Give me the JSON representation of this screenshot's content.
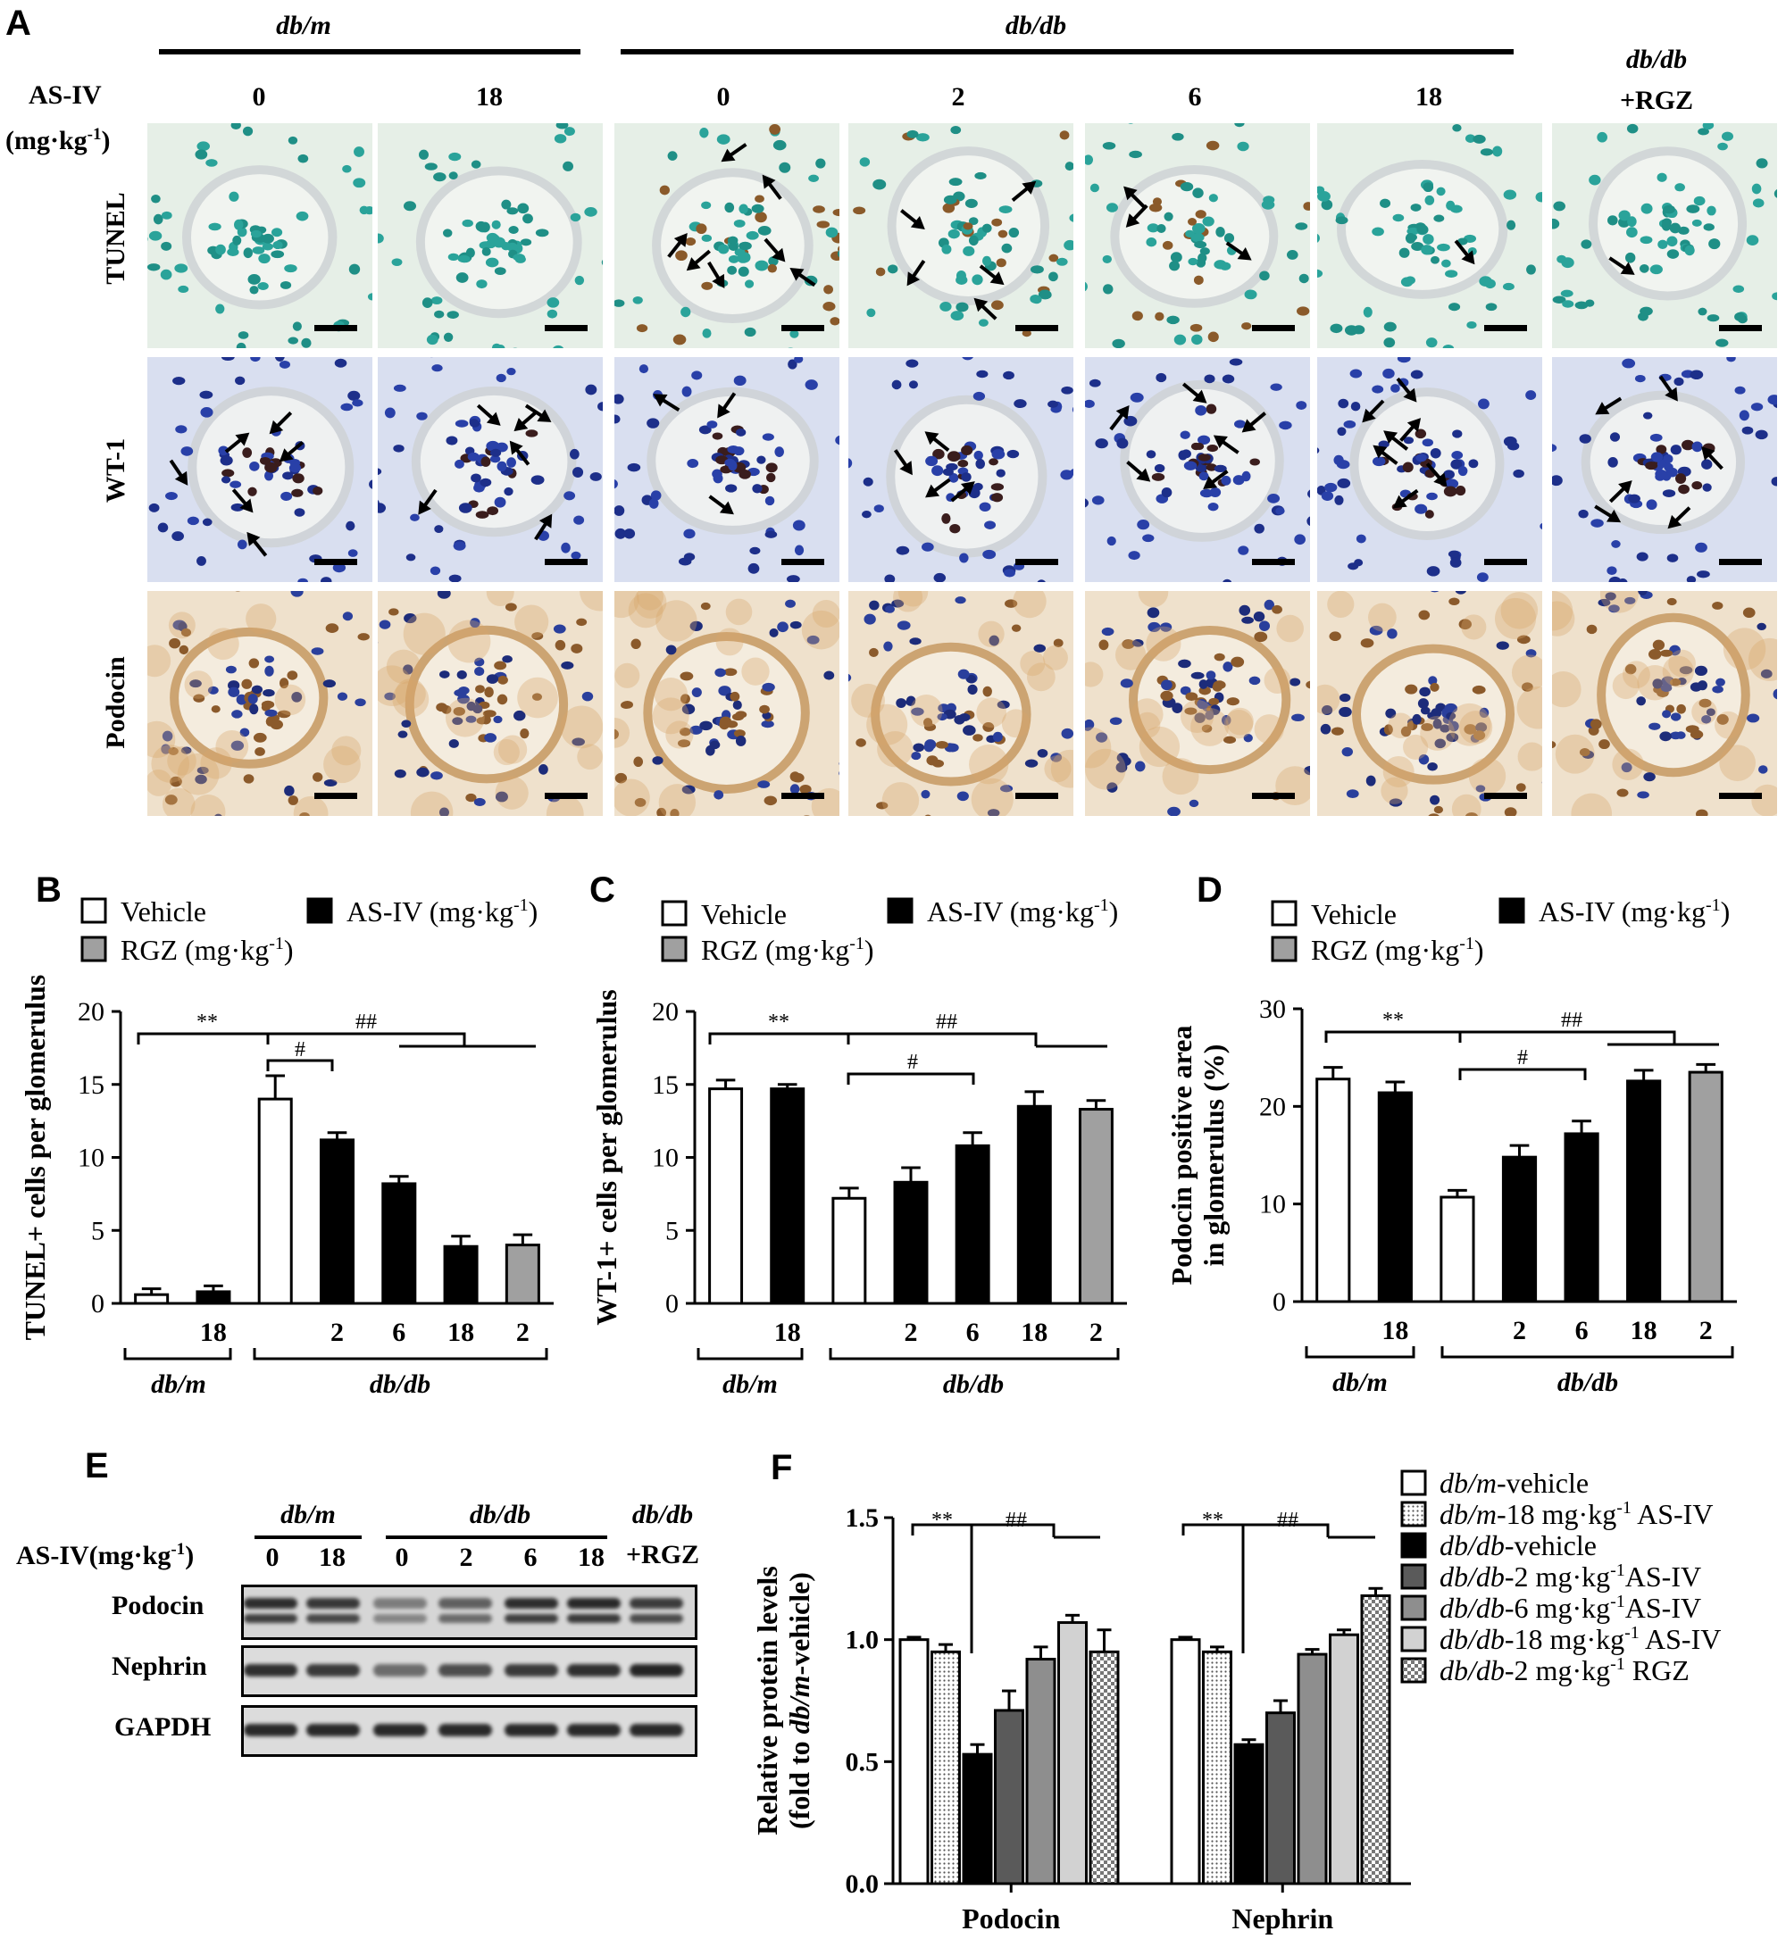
{
  "panelA": {
    "letter": "A",
    "group_dbm": "db/m",
    "group_dbdb": "db/db",
    "group_rgz_line1": "db/db",
    "group_rgz_line2": "+RGZ",
    "asiv_label": "AS-IV",
    "unit_label": "(mg·kg",
    "unit_sup": "-1",
    "unit_close": ")",
    "doses": [
      "0",
      "18",
      "0",
      "2",
      "6",
      "18"
    ],
    "rows": [
      "TUNEL",
      "WT-1",
      "Podocin"
    ],
    "stain_colors": {
      "tunel": "#e6efe7",
      "wt1": "#d9dff0",
      "podocin": "#efe1cc"
    }
  },
  "panelB": {
    "letter": "B",
    "legend": [
      "Vehicle",
      "AS-IV (mg·kg",
      "RGZ (mg·kg"
    ],
    "legend_sup": "-1",
    "legend_close": ")",
    "sig_left": "**",
    "sig_right": "##",
    "sig_inner": "#",
    "group1": "db/m",
    "group2": "db/db"
  },
  "panelC": {
    "letter": "C",
    "legend": [
      "Vehicle",
      "AS-IV (mg·kg",
      "RGZ (mg·kg"
    ],
    "legend_sup": "-1",
    "legend_close": ")",
    "sig_left": "**",
    "sig_right": "##",
    "sig_inner": "#",
    "group1": "db/m",
    "group2": "db/db"
  },
  "panelD": {
    "letter": "D",
    "legend": [
      "Vehicle",
      "AS-IV (mg·kg",
      "RGZ (mg·kg"
    ],
    "legend_sup": "-1",
    "legend_close": ")",
    "sig_left": "**",
    "sig_right": "##",
    "sig_inner": "#",
    "group1": "db/m",
    "group2": "db/db"
  },
  "panelE": {
    "letter": "E",
    "group_dbm": "db/m",
    "group_dbdb": "db/db",
    "group_rgz_line1": "db/db",
    "group_rgz_line2": "+RGZ",
    "asiv_label": "AS-IV(mg·kg",
    "asiv_sup": "-1",
    "asiv_close": ")",
    "doses": [
      "0",
      "18",
      "0",
      "2",
      "6",
      "18"
    ],
    "blots": [
      "Podocin",
      "Nephrin",
      "GAPDH"
    ]
  },
  "panelF": {
    "letter": "F",
    "sig_left": "**",
    "sig_right": "##",
    "legend": [
      {
        "pre": "db/m",
        "post": "-vehicle",
        "sup": "",
        "tail": ""
      },
      {
        "pre": "db/m",
        "post": "-18 mg·kg",
        "sup": "-1",
        "tail": " AS-IV"
      },
      {
        "pre": "db/db",
        "post": "-vehicle",
        "sup": "",
        "tail": ""
      },
      {
        "pre": "db/db",
        "post": "-2 mg·kg",
        "sup": "-1",
        "tail": "AS-IV"
      },
      {
        "pre": "db/db",
        "post": "-6 mg·kg",
        "sup": "-1",
        "tail": "AS-IV"
      },
      {
        "pre": "db/db",
        "post": "-18 mg·kg",
        "sup": "-1",
        "tail": " AS-IV"
      },
      {
        "pre": "db/db",
        "post": "-2 mg·kg",
        "sup": "-1",
        "tail": " RGZ"
      }
    ]
  },
  "chart_data": [
    {
      "id": "B",
      "type": "bar",
      "ylabel": "TUNEL+ cells per glomerulus",
      "ylim": [
        0,
        20
      ],
      "yticks": [
        0,
        5,
        10,
        15,
        20
      ],
      "categories": [
        "",
        "18",
        "",
        "2",
        "6",
        "18",
        "2"
      ],
      "values": [
        0.6,
        0.8,
        14.0,
        11.2,
        8.2,
        3.9,
        4.0
      ],
      "errors": [
        0.4,
        0.4,
        1.6,
        0.5,
        0.5,
        0.7,
        0.7
      ],
      "fills": [
        "vehicle",
        "asiv",
        "vehicle",
        "asiv",
        "asiv",
        "asiv",
        "rgz"
      ]
    },
    {
      "id": "C",
      "type": "bar",
      "ylabel": "WT-1+ cells per glomerulus",
      "ylim": [
        0,
        20
      ],
      "yticks": [
        0,
        5,
        10,
        15,
        20
      ],
      "categories": [
        "",
        "18",
        "",
        "2",
        "6",
        "18",
        "2"
      ],
      "values": [
        14.7,
        14.7,
        7.2,
        8.3,
        10.8,
        13.5,
        13.3
      ],
      "errors": [
        0.6,
        0.3,
        0.7,
        1.0,
        0.9,
        1.0,
        0.6
      ],
      "fills": [
        "vehicle",
        "asiv",
        "vehicle",
        "asiv",
        "asiv",
        "asiv",
        "rgz"
      ]
    },
    {
      "id": "D",
      "type": "bar",
      "ylabel": "Podocin positive area in glomerulus (%)",
      "ylabel_line1": "Podocin positive area",
      "ylabel_line2": "in glomerulus (%)",
      "ylim": [
        0,
        30
      ],
      "yticks": [
        0,
        10,
        20,
        30
      ],
      "categories": [
        "",
        "18",
        "",
        "2",
        "6",
        "18",
        "2"
      ],
      "values": [
        22.8,
        21.4,
        10.7,
        14.8,
        17.2,
        22.6,
        23.5
      ],
      "errors": [
        1.2,
        1.1,
        0.7,
        1.2,
        1.3,
        1.1,
        0.8
      ],
      "fills": [
        "vehicle",
        "asiv",
        "vehicle",
        "asiv",
        "asiv",
        "asiv",
        "rgz"
      ]
    },
    {
      "id": "F",
      "type": "bar",
      "ylabel_line1": "Relative protein levels",
      "ylabel_line2_pre": "(fold  to ",
      "ylabel_line2_ital": "db/m",
      "ylabel_line2_post": "-vehicle)",
      "ylim": [
        0,
        1.5
      ],
      "yticks": [
        "0.0",
        "0.5",
        "1.0",
        "1.5"
      ],
      "categories": [
        "Podocin",
        "Nephrin"
      ],
      "series": [
        {
          "values": [
            1.0,
            1.0
          ],
          "errors": [
            0.01,
            0.01
          ]
        },
        {
          "values": [
            0.95,
            0.95
          ],
          "errors": [
            0.03,
            0.02
          ]
        },
        {
          "values": [
            0.53,
            0.57
          ],
          "errors": [
            0.04,
            0.02
          ]
        },
        {
          "values": [
            0.71,
            0.7
          ],
          "errors": [
            0.08,
            0.05
          ]
        },
        {
          "values": [
            0.92,
            0.94
          ],
          "errors": [
            0.05,
            0.02
          ]
        },
        {
          "values": [
            1.07,
            1.02
          ],
          "errors": [
            0.03,
            0.02
          ]
        },
        {
          "values": [
            0.95,
            1.18
          ],
          "errors": [
            0.09,
            0.03
          ]
        }
      ]
    }
  ]
}
